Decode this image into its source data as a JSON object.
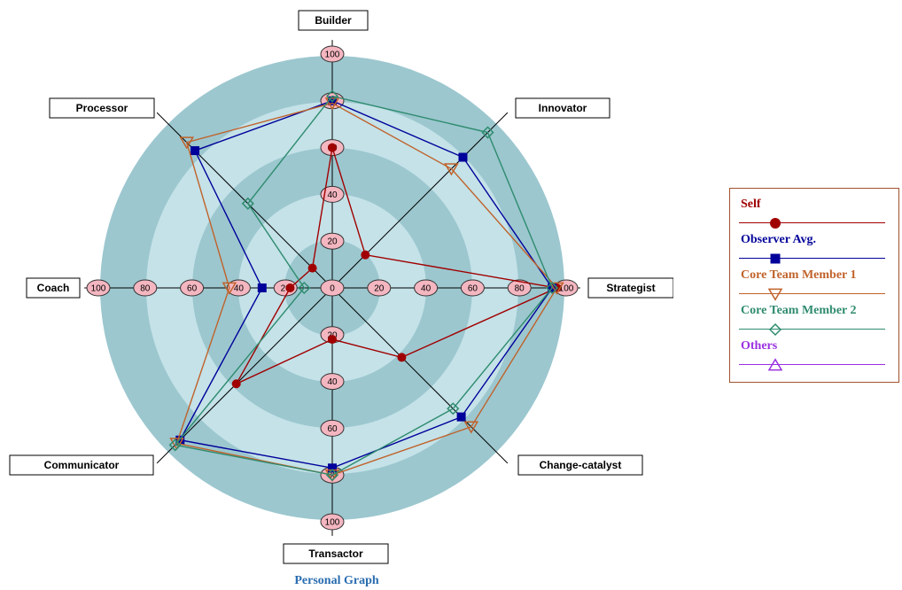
{
  "chart_data": {
    "type": "radar",
    "title": "Personal Graph",
    "axes": [
      "Builder",
      "Innovator",
      "Strategist",
      "Change-catalyst",
      "Transactor",
      "Communicator",
      "Coach",
      "Processor"
    ],
    "ticks": [
      "0",
      "20",
      "40",
      "60",
      "80",
      "100"
    ],
    "range": [
      0,
      100
    ],
    "series": [
      {
        "name": "Self",
        "color": "#a00000",
        "marker": "circle",
        "values": [
          60,
          20,
          96,
          42,
          22,
          58,
          18,
          12
        ]
      },
      {
        "name": "Observer Avg.",
        "color": "#00009a",
        "marker": "square",
        "values": [
          80,
          79,
          94,
          78,
          77,
          92,
          30,
          83
        ]
      },
      {
        "name": "Core Team Member 1",
        "color": "#c0622a",
        "marker": "triangle-down",
        "values": [
          79,
          72,
          96,
          84,
          80,
          94,
          44,
          88
        ]
      },
      {
        "name": "Core Team Member 2",
        "color": "#2e8b6e",
        "marker": "diamond",
        "values": [
          82,
          94,
          94,
          73,
          80,
          95,
          12,
          51
        ]
      },
      {
        "name": "Others",
        "color": "#9a30e0",
        "marker": "triangle-up",
        "values": []
      }
    ]
  }
}
